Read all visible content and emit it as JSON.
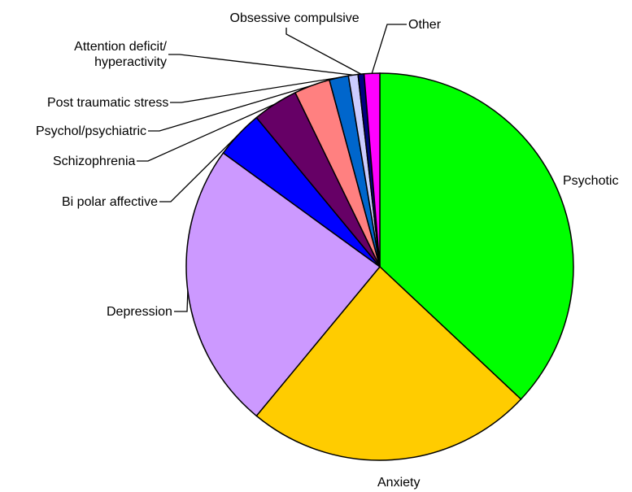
{
  "chart_data": {
    "type": "pie",
    "categories": [
      "Psychotic",
      "Anxiety",
      "Depression",
      "Bi polar affective",
      "Schizophrenia",
      "Psychol/psychiatric",
      "Post traumatic stress",
      "Attention deficit/ hyperactivity",
      "Obsessive compulsive",
      "Other"
    ],
    "values": [
      37,
      24,
      24,
      4,
      3.8,
      3,
      1.6,
      0.8,
      0.5,
      1.3
    ],
    "colors": [
      "#00ff00",
      "#ffcc00",
      "#cc99ff",
      "#0000ff",
      "#660066",
      "#ff8080",
      "#0066cc",
      "#ccccff",
      "#000080",
      "#ff00ff"
    ]
  }
}
